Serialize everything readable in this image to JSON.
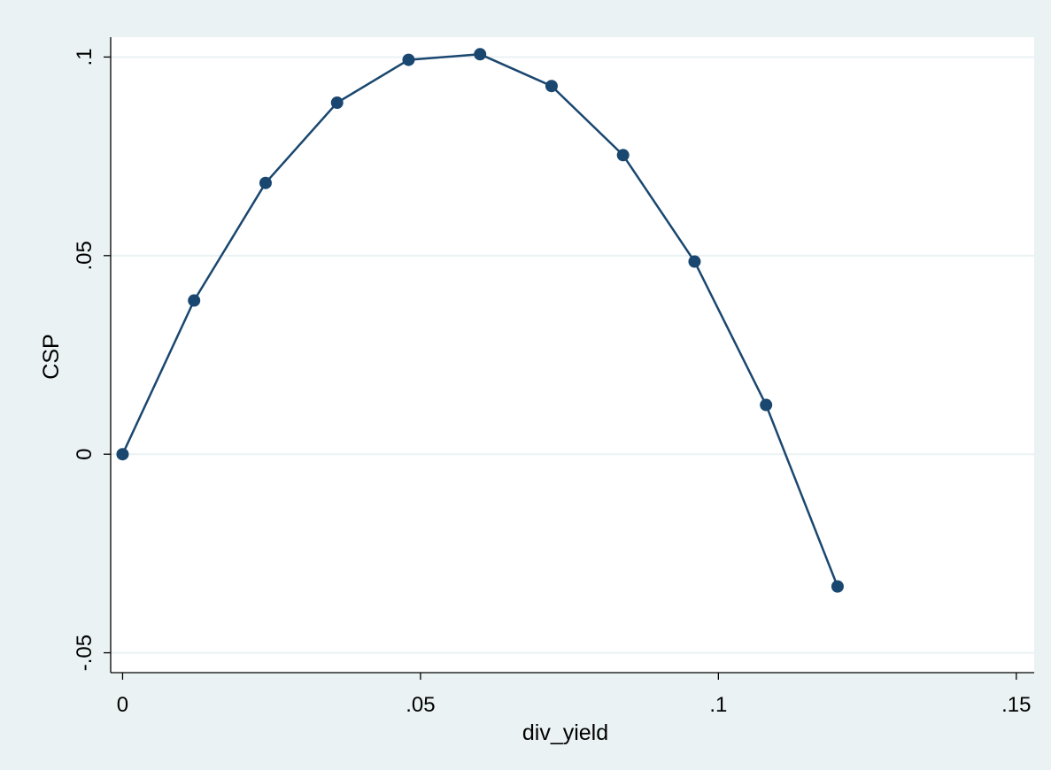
{
  "chart_data": {
    "type": "line",
    "title": "",
    "xlabel": "div_yield",
    "ylabel": "CSP",
    "xlim": [
      -0.002,
      0.153
    ],
    "ylim": [
      -0.055,
      0.105
    ],
    "xticks": [
      {
        "value": 0,
        "label": "0"
      },
      {
        "value": 0.05,
        "label": ".05"
      },
      {
        "value": 0.1,
        "label": ".1"
      },
      {
        "value": 0.15,
        "label": ".15"
      }
    ],
    "yticks": [
      {
        "value": -0.05,
        "label": "-.05"
      },
      {
        "value": 0,
        "label": "0"
      },
      {
        "value": 0.05,
        "label": ".05"
      },
      {
        "value": 0.1,
        "label": ".1"
      }
    ],
    "grid": true,
    "legend": "none",
    "series": [
      {
        "x": [
          0,
          0.012,
          0.024,
          0.036,
          0.048,
          0.06,
          0.072,
          0.084,
          0.096,
          0.108,
          0.12
        ],
        "values": [
          0,
          0.0387,
          0.0683,
          0.0885,
          0.0993,
          0.1007,
          0.0927,
          0.0753,
          0.0485,
          0.0124,
          -0.0333
        ]
      }
    ],
    "colors": {
      "outer_background": "#eaf2f3",
      "plot_background": "#ffffff",
      "gridline": "#eaf2f3",
      "series": "#1a476f"
    }
  }
}
